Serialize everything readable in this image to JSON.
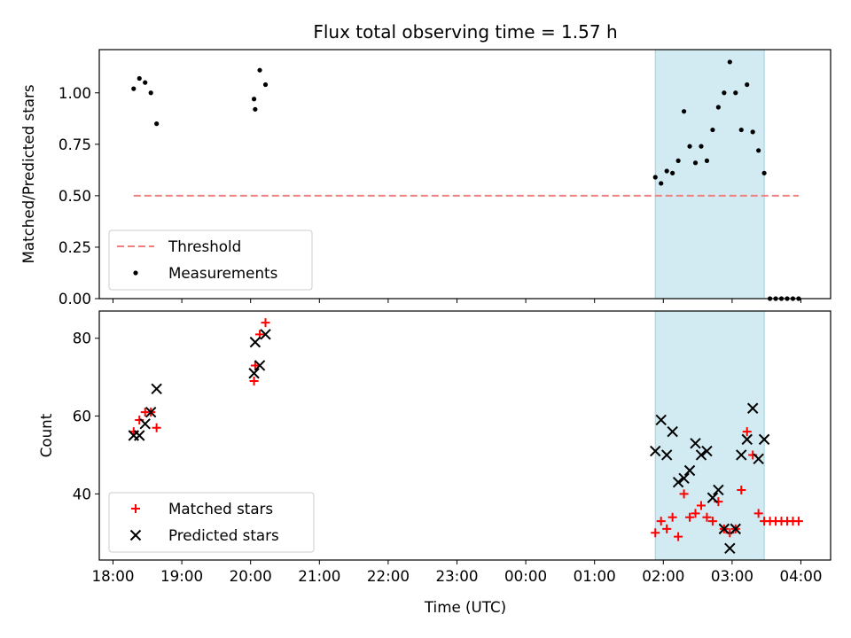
{
  "chart_data": {
    "title": "Flux total observing time = 1.57 h",
    "xlabel": "Time (UTC)",
    "xticks": [
      "18:00",
      "19:00",
      "20:00",
      "21:00",
      "22:00",
      "23:00",
      "00:00",
      "01:00",
      "02:00",
      "03:00",
      "04:00"
    ],
    "x_unit": "hours since 18:00 UTC",
    "shaded_span": {
      "start": "01:53",
      "end": "03:28",
      "color": "#add8e6"
    },
    "panels": [
      {
        "type": "scatter",
        "ylabel": "Matched/Predicted stars",
        "ylim": [
          0,
          1.21
        ],
        "yticks": [
          "0.00",
          "0.25",
          "0.50",
          "0.75",
          "1.00"
        ],
        "legend": {
          "placement": "lower-left",
          "entries": [
            "Threshold",
            "Measurements"
          ]
        },
        "threshold": {
          "name": "Threshold",
          "value": 0.5,
          "x_range": [
            "18:18",
            "03:58"
          ],
          "color": "#f08080",
          "style": "dashed"
        },
        "series": [
          {
            "name": "Measurements",
            "color": "#000000",
            "marker": "dot",
            "points": [
              [
                "18:18",
                1.02
              ],
              [
                "18:23",
                1.07
              ],
              [
                "18:28",
                1.05
              ],
              [
                "18:33",
                1.0
              ],
              [
                "18:38",
                0.85
              ],
              [
                "20:03",
                0.97
              ],
              [
                "20:04",
                0.92
              ],
              [
                "20:08",
                1.11
              ],
              [
                "20:13",
                1.04
              ],
              [
                "01:53",
                0.59
              ],
              [
                "01:58",
                0.56
              ],
              [
                "02:03",
                0.62
              ],
              [
                "02:08",
                0.61
              ],
              [
                "02:13",
                0.67
              ],
              [
                "02:18",
                0.91
              ],
              [
                "02:23",
                0.74
              ],
              [
                "02:28",
                0.66
              ],
              [
                "02:33",
                0.74
              ],
              [
                "02:38",
                0.67
              ],
              [
                "02:43",
                0.82
              ],
              [
                "02:48",
                0.93
              ],
              [
                "02:53",
                1.0
              ],
              [
                "02:58",
                1.15
              ],
              [
                "03:03",
                1.0
              ],
              [
                "03:08",
                0.82
              ],
              [
                "03:13",
                1.04
              ],
              [
                "03:18",
                0.81
              ],
              [
                "03:23",
                0.72
              ],
              [
                "03:28",
                0.61
              ],
              [
                "03:33",
                0.0
              ],
              [
                "03:38",
                0.0
              ],
              [
                "03:43",
                0.0
              ],
              [
                "03:48",
                0.0
              ],
              [
                "03:53",
                0.0
              ],
              [
                "03:58",
                0.0
              ]
            ]
          }
        ]
      },
      {
        "type": "scatter",
        "ylabel": "Count",
        "ylim": [
          23,
          87
        ],
        "yticks": [
          "40",
          "60",
          "80"
        ],
        "legend": {
          "placement": "lower-left",
          "entries": [
            "Matched stars",
            "Predicted stars"
          ]
        },
        "series": [
          {
            "name": "Matched stars",
            "color": "#ff0000",
            "marker": "plus",
            "points": [
              [
                "18:18",
                56
              ],
              [
                "18:23",
                59
              ],
              [
                "18:28",
                61
              ],
              [
                "18:33",
                61
              ],
              [
                "18:38",
                57
              ],
              [
                "20:03",
                69
              ],
              [
                "20:04",
                73
              ],
              [
                "20:08",
                81
              ],
              [
                "20:13",
                84
              ],
              [
                "01:53",
                30
              ],
              [
                "01:58",
                33
              ],
              [
                "02:03",
                31
              ],
              [
                "02:08",
                34
              ],
              [
                "02:13",
                29
              ],
              [
                "02:18",
                40
              ],
              [
                "02:23",
                34
              ],
              [
                "02:28",
                35
              ],
              [
                "02:33",
                37
              ],
              [
                "02:38",
                34
              ],
              [
                "02:43",
                33
              ],
              [
                "02:48",
                38
              ],
              [
                "02:53",
                31
              ],
              [
                "02:58",
                30
              ],
              [
                "03:03",
                31
              ],
              [
                "03:08",
                41
              ],
              [
                "03:13",
                56
              ],
              [
                "03:18",
                50
              ],
              [
                "03:23",
                35
              ],
              [
                "03:28",
                33
              ],
              [
                "03:33",
                33
              ],
              [
                "03:38",
                33
              ],
              [
                "03:43",
                33
              ],
              [
                "03:48",
                33
              ],
              [
                "03:53",
                33
              ],
              [
                "03:58",
                33
              ]
            ]
          },
          {
            "name": "Predicted stars",
            "color": "#000000",
            "marker": "x",
            "points": [
              [
                "18:18",
                55
              ],
              [
                "18:23",
                55
              ],
              [
                "18:28",
                58
              ],
              [
                "18:33",
                61
              ],
              [
                "18:38",
                67
              ],
              [
                "20:03",
                71
              ],
              [
                "20:04",
                79
              ],
              [
                "20:08",
                73
              ],
              [
                "20:13",
                81
              ],
              [
                "01:53",
                51
              ],
              [
                "01:58",
                59
              ],
              [
                "02:03",
                50
              ],
              [
                "02:08",
                56
              ],
              [
                "02:13",
                43
              ],
              [
                "02:18",
                44
              ],
              [
                "02:23",
                46
              ],
              [
                "02:28",
                53
              ],
              [
                "02:33",
                50
              ],
              [
                "02:38",
                51
              ],
              [
                "02:43",
                39
              ],
              [
                "02:48",
                41
              ],
              [
                "02:53",
                31
              ],
              [
                "02:58",
                26
              ],
              [
                "03:03",
                31
              ],
              [
                "03:08",
                50
              ],
              [
                "03:13",
                54
              ],
              [
                "03:18",
                62
              ],
              [
                "03:23",
                49
              ],
              [
                "03:28",
                54
              ]
            ]
          }
        ]
      }
    ]
  }
}
